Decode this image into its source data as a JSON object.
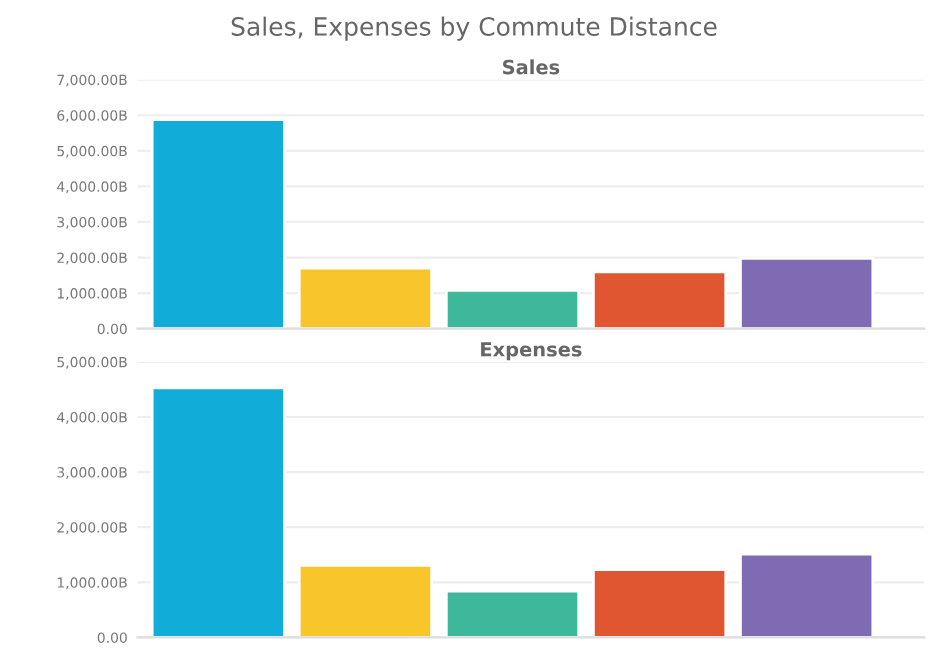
{
  "chart_data": [
    {
      "type": "bar",
      "title": "Sales, Expenses by Commute Distance",
      "subtitle": "Sales",
      "categories": [
        null,
        null,
        null,
        null,
        null
      ],
      "values": [
        5880,
        1700,
        1080,
        1600,
        1980
      ],
      "colors": [
        "#11acd8",
        "#f8c52b",
        "#3db89a",
        "#e05631",
        "#7e6bb4"
      ],
      "ylim": [
        0,
        7000
      ],
      "yticks": [
        {
          "value": 0,
          "label": "0.00"
        },
        {
          "value": 1000,
          "label": "1,000.00B"
        },
        {
          "value": 2000,
          "label": "2,000.00B"
        },
        {
          "value": 3000,
          "label": "3,000.00B"
        },
        {
          "value": 4000,
          "label": "4,000.00B"
        },
        {
          "value": 5000,
          "label": "5,000.00B"
        },
        {
          "value": 6000,
          "label": "6,000.00B"
        },
        {
          "value": 7000,
          "label": "7,000.00B"
        }
      ],
      "grid": "y"
    },
    {
      "type": "bar",
      "title": "Expenses",
      "categories": [
        null,
        null,
        null,
        null,
        null
      ],
      "values": [
        4530,
        1310,
        840,
        1230,
        1510
      ],
      "colors": [
        "#11acd8",
        "#f8c52b",
        "#3db89a",
        "#e05631",
        "#7e6bb4"
      ],
      "ylim": [
        0,
        5000
      ],
      "yticks": [
        {
          "value": 0,
          "label": "0.00"
        },
        {
          "value": 1000,
          "label": "1,000.00B"
        },
        {
          "value": 2000,
          "label": "2,000.00B"
        },
        {
          "value": 3000,
          "label": "3,000.00B"
        },
        {
          "value": 4000,
          "label": "4,000.00B"
        },
        {
          "value": 5000,
          "label": "5,000.00B"
        }
      ],
      "grid": "y"
    }
  ]
}
